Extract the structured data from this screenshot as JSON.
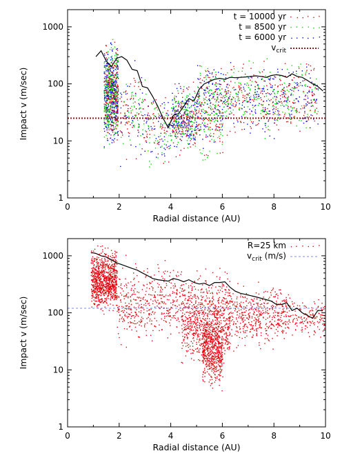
{
  "chart_data": [
    {
      "type": "scatter",
      "xlabel": "Radial distance (AU)",
      "ylabel": "Impact v (m/sec)",
      "xlim": [
        0,
        10
      ],
      "ylim": [
        1,
        2000
      ],
      "yscale": "log",
      "x_ticks": [
        "0",
        "2",
        "4",
        "6",
        "8",
        "10"
      ],
      "y_ticks": [
        "1",
        "10",
        "100",
        "1000"
      ],
      "legend_position": "top-right",
      "series": [
        {
          "name": "t = 10000 yr",
          "color": "#e8000b",
          "kind": "points"
        },
        {
          "name": "t = 8500 yr",
          "color": "#00e000",
          "kind": "points"
        },
        {
          "name": "t = 6000 yr",
          "color": "#0000e0",
          "kind": "points"
        }
      ],
      "vcrit_label": "v",
      "vcrit_sub": "crit",
      "vcrit_value": 25,
      "vcrit_color": "#8b1a1a",
      "clusters": [
        {
          "x": [
            1.4,
            1.95
          ],
          "y": [
            5,
            950
          ],
          "density": "high"
        },
        {
          "x": [
            2.0,
            3.0
          ],
          "y": [
            2.5,
            400
          ],
          "density": "low"
        },
        {
          "x": [
            3.0,
            4.0
          ],
          "y": [
            3,
            100
          ],
          "density": "low"
        },
        {
          "x": [
            4.0,
            5.0
          ],
          "y": [
            5,
            120
          ],
          "density": "medium"
        },
        {
          "x": [
            5.0,
            6.0
          ],
          "y": [
            2,
            250
          ],
          "density": "low"
        },
        {
          "x": [
            5.0,
            9.7
          ],
          "y": [
            10,
            350
          ],
          "density": "high"
        }
      ],
      "black_curve": {
        "x": [
          1.1,
          1.3,
          1.5,
          1.7,
          1.9,
          2.1,
          2.3,
          2.5,
          2.7,
          2.9,
          3.1,
          3.3,
          3.5,
          3.7,
          3.9,
          4.1,
          4.3,
          4.5,
          4.7,
          4.9,
          5.1,
          5.3,
          5.5,
          5.7,
          5.9,
          6.1,
          6.3,
          6.5,
          6.7,
          6.9,
          7.1,
          7.3,
          7.5,
          7.7,
          7.9,
          8.1,
          8.3,
          8.5,
          8.7,
          8.9,
          9.1,
          9.3,
          9.5,
          9.7,
          9.9
        ],
        "y": [
          300,
          380,
          250,
          200,
          280,
          300,
          260,
          180,
          170,
          90,
          85,
          60,
          40,
          25,
          17,
          28,
          30,
          40,
          55,
          50,
          80,
          100,
          110,
          120,
          125,
          120,
          130,
          128,
          130,
          132,
          135,
          138,
          135,
          130,
          140,
          145,
          140,
          130,
          150,
          135,
          130,
          115,
          100,
          90,
          75
        ]
      }
    },
    {
      "type": "scatter",
      "xlabel": "Radial distance (AU)",
      "ylabel": "Impact v (m/sec)",
      "xlim": [
        0,
        10
      ],
      "ylim": [
        1,
        2000
      ],
      "yscale": "log",
      "x_ticks": [
        "0",
        "2",
        "4",
        "6",
        "8",
        "10"
      ],
      "y_ticks": [
        "1",
        "10",
        "100",
        "1000"
      ],
      "legend_position": "top-right",
      "series": [
        {
          "name": "R=25 km",
          "color": "#e8000b",
          "kind": "points"
        }
      ],
      "vcrit_label": "v",
      "vcrit_sub": "crit",
      "vcrit_suffix": " (m/s)",
      "vcrit_value": 120,
      "vcrit_color": "#7b88ff",
      "clusters": [
        {
          "x": [
            0.9,
            1.9
          ],
          "y": [
            80,
            1800
          ],
          "density": "high"
        },
        {
          "x": [
            1.9,
            4.4
          ],
          "y": [
            20,
            1100
          ],
          "density": "medium"
        },
        {
          "x": [
            4.4,
            6.3
          ],
          "y": [
            8,
            700
          ],
          "density": "high"
        },
        {
          "x": [
            5.2,
            6.0
          ],
          "y": [
            4,
            100
          ],
          "density": "medium"
        },
        {
          "x": [
            6.3,
            8.5
          ],
          "y": [
            20,
            450
          ],
          "density": "medium"
        },
        {
          "x": [
            8.5,
            10.0
          ],
          "y": [
            30,
            220
          ],
          "density": "low"
        }
      ],
      "black_curve": {
        "x": [
          0.9,
          1.1,
          1.3,
          1.5,
          1.7,
          1.9,
          2.1,
          2.3,
          2.5,
          2.7,
          2.9,
          3.1,
          3.3,
          3.5,
          3.7,
          3.9,
          4.1,
          4.3,
          4.5,
          4.7,
          4.9,
          5.1,
          5.3,
          5.5,
          5.7,
          5.9,
          6.1,
          6.3,
          6.5,
          6.7,
          6.9,
          7.1,
          7.3,
          7.5,
          7.7,
          7.9,
          8.1,
          8.3,
          8.5,
          8.7,
          8.9,
          9.1,
          9.3,
          9.5,
          9.7,
          9.9
        ],
        "y": [
          1150,
          1100,
          1000,
          950,
          850,
          750,
          700,
          650,
          600,
          560,
          500,
          450,
          400,
          380,
          370,
          360,
          400,
          380,
          350,
          380,
          340,
          320,
          330,
          300,
          340,
          340,
          350,
          280,
          240,
          220,
          210,
          200,
          190,
          180,
          170,
          160,
          140,
          140,
          150,
          110,
          120,
          100,
          90,
          80,
          110,
          110
        ]
      }
    }
  ]
}
